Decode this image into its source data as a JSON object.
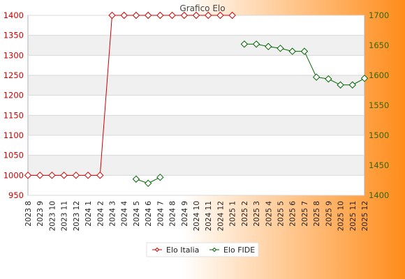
{
  "chart_data": {
    "type": "line",
    "title": "Grafico Elo",
    "categories": [
      "2023 8",
      "2023 9",
      "2023 10",
      "2023 11",
      "2023 12",
      "2024 1",
      "2024 2",
      "2024 3",
      "2024 4",
      "2024 5",
      "2024 6",
      "2024 7",
      "2024 8",
      "2024 9",
      "2024 10",
      "2024 11",
      "2024 12",
      "2025 1",
      "2025 2",
      "2025 3",
      "2025 4",
      "2025 5",
      "2025 6",
      "2025 7",
      "2025 8",
      "2025 9",
      "2025 10",
      "2025 11",
      "2025 12"
    ],
    "y_left": {
      "ylim": [
        950,
        1400
      ],
      "ticks": [
        950,
        1000,
        1050,
        1100,
        1150,
        1200,
        1250,
        1300,
        1350,
        1400
      ]
    },
    "y_right": {
      "ylim": [
        1400,
        1700
      ],
      "ticks": [
        1400,
        1450,
        1500,
        1550,
        1600,
        1650,
        1700
      ]
    },
    "grid": true,
    "legend_position": "bottom-center",
    "series": [
      {
        "name": "Elo Italia",
        "axis": "left",
        "color": "#cc0000",
        "marker": "diamond",
        "values": [
          1000,
          1000,
          1000,
          1000,
          1000,
          1000,
          1000,
          1400,
          1400,
          1400,
          1400,
          1400,
          1400,
          1400,
          1400,
          1400,
          1400,
          1400,
          null,
          null,
          null,
          null,
          null,
          null,
          null,
          null,
          null,
          null,
          null
        ]
      },
      {
        "name": "Elo FIDE",
        "axis": "right",
        "color": "#006600",
        "marker": "diamond",
        "values": [
          null,
          null,
          null,
          null,
          null,
          null,
          null,
          null,
          null,
          1427,
          1420,
          1430,
          null,
          null,
          null,
          null,
          null,
          null,
          1652,
          1652,
          1648,
          1645,
          1640,
          1640,
          1597,
          1594,
          1584,
          1584,
          1595
        ]
      }
    ]
  },
  "colors": {
    "background_left": "#ffffff",
    "background_right": "#ff8c1a",
    "plot_band": "#f0f0f0",
    "grid": "#d8d8d8",
    "left_axis_text": "#cc0000",
    "right_axis_text": "#336600"
  }
}
